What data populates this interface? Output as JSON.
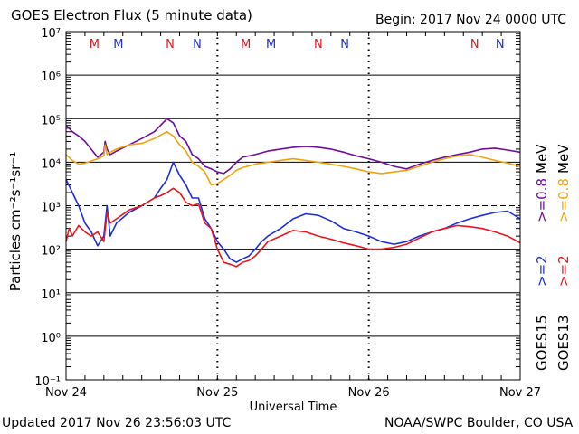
{
  "header": {
    "title": "GOES Electron Flux (5 minute data)",
    "begin": "Begin: 2017 Nov 24 0000 UTC"
  },
  "footer": {
    "updated": "Updated 2017 Nov 26 23:56:03 UTC",
    "source": "NOAA/SWPC Boulder, CO USA"
  },
  "colors": {
    "red": "#e8151b",
    "blue": "#1d2fd8",
    "purple": "#6a0f9e",
    "orange": "#f0a30a"
  },
  "legend": {
    "goes15": "GOES15",
    "goes13": "GOES13",
    "e2_blue": ">=2",
    "e2_red": ">=2",
    "e08_purple": ">=0.8",
    "e08_orange": ">=0.8",
    "mev1": "MeV",
    "mev2": "MeV"
  },
  "chart_data": {
    "type": "line",
    "title": "GOES Electron Flux (5 minute data)",
    "xlabel": "Universal Time",
    "ylabel": "Particles cm⁻²s⁻¹sr⁻¹",
    "x_ticks": [
      "Nov 24",
      "Nov 25",
      "Nov 26",
      "Nov 27"
    ],
    "x_unit": "hours since 2017 Nov 24 0000 UTC",
    "xlim": [
      0,
      72
    ],
    "y_scale": "log",
    "ylim_exponent": [
      -1,
      7
    ],
    "y_ticks": [
      "10⁻¹",
      "10⁰",
      "10¹",
      "10²",
      "10³",
      "10⁴",
      "10⁵",
      "10⁶",
      "10⁷"
    ],
    "threshold_dashed": 1000,
    "markers": [
      {
        "label": "M",
        "color": "red"
      },
      {
        "label": "M",
        "color": "blue"
      },
      {
        "label": "N",
        "color": "red"
      },
      {
        "label": "N",
        "color": "blue"
      },
      {
        "label": "M",
        "color": "red"
      },
      {
        "label": "M",
        "color": "blue"
      },
      {
        "label": "N",
        "color": "red"
      },
      {
        "label": "N",
        "color": "blue"
      },
      {
        "label": "N",
        "color": "red"
      },
      {
        "label": "N",
        "color": "blue"
      }
    ],
    "series": [
      {
        "name": "GOES15 >=0.8 MeV",
        "color": "purple",
        "x": [
          0,
          1,
          2,
          3,
          5,
          6,
          6.2,
          6.5,
          7,
          8,
          10,
          12,
          14,
          16,
          17,
          18,
          19,
          20,
          21,
          22,
          23,
          24,
          25,
          26,
          27,
          28,
          30,
          32,
          34,
          36,
          38,
          40,
          42,
          44,
          46,
          48,
          50,
          52,
          54,
          56,
          58,
          60,
          62,
          64,
          66,
          68,
          70,
          72
        ],
        "y": [
          70000,
          50000,
          40000,
          30000,
          13000,
          17000,
          30000,
          20000,
          15000,
          18000,
          25000,
          35000,
          50000,
          100000,
          80000,
          40000,
          30000,
          15000,
          12000,
          8000,
          7000,
          6000,
          5500,
          7000,
          10000,
          13000,
          15000,
          18000,
          20000,
          22000,
          23000,
          22000,
          20000,
          17000,
          14000,
          12000,
          10000,
          8000,
          7000,
          9000,
          11000,
          13000,
          15000,
          17000,
          20000,
          21000,
          19000,
          17000
        ]
      },
      {
        "name": "GOES13 >=0.8 MeV",
        "color": "orange",
        "x": [
          0,
          1,
          2,
          3,
          5,
          6,
          6.2,
          6.5,
          7,
          8,
          10,
          12,
          14,
          16,
          17,
          18,
          19,
          20,
          21,
          22,
          23,
          24,
          25,
          26,
          27,
          28,
          30,
          32,
          34,
          36,
          38,
          40,
          42,
          44,
          46,
          48,
          50,
          52,
          54,
          56,
          58,
          60,
          62,
          64,
          66,
          68,
          70,
          72
        ],
        "y": [
          15000,
          11000,
          9000,
          9500,
          12000,
          14000,
          25000,
          15000,
          17000,
          20000,
          25000,
          27000,
          35000,
          50000,
          40000,
          25000,
          18000,
          10000,
          8000,
          6000,
          3000,
          3200,
          4000,
          5000,
          6500,
          7500,
          9000,
          10000,
          11000,
          12000,
          11000,
          10000,
          9000,
          8000,
          7000,
          6000,
          5500,
          6000,
          6500,
          8000,
          10000,
          12000,
          14000,
          15000,
          13000,
          11000,
          9500,
          8000
        ]
      },
      {
        "name": "GOES15 >=2 MeV",
        "color": "blue",
        "x": [
          0,
          1,
          2,
          3,
          4,
          5,
          6,
          6.5,
          7,
          8,
          10,
          12,
          14,
          15,
          16,
          17,
          18,
          19,
          20,
          21,
          22,
          23,
          24,
          25,
          26,
          27,
          28,
          29,
          30,
          31,
          32,
          34,
          36,
          38,
          40,
          42,
          44,
          46,
          48,
          50,
          52,
          54,
          56,
          58,
          60,
          62,
          64,
          66,
          68,
          70,
          72
        ],
        "y": [
          4000,
          2000,
          1000,
          400,
          250,
          120,
          200,
          1000,
          200,
          400,
          700,
          1000,
          1500,
          2500,
          4000,
          10000,
          5000,
          3000,
          1500,
          1500,
          500,
          300,
          150,
          100,
          60,
          50,
          60,
          70,
          100,
          150,
          200,
          300,
          500,
          650,
          600,
          450,
          300,
          250,
          200,
          150,
          130,
          150,
          200,
          250,
          300,
          400,
          500,
          600,
          700,
          750,
          500
        ]
      },
      {
        "name": "GOES13 >=2 MeV",
        "color": "red",
        "x": [
          0,
          0.5,
          1,
          2,
          3,
          4,
          5,
          6,
          6.5,
          7,
          8,
          10,
          12,
          14,
          15,
          16,
          17,
          18,
          19,
          20,
          21,
          22,
          23,
          24,
          25,
          26,
          27,
          28,
          29,
          30,
          31,
          32,
          34,
          36,
          38,
          40,
          42,
          44,
          46,
          48,
          50,
          52,
          54,
          56,
          58,
          60,
          62,
          64,
          66,
          68,
          70,
          72
        ],
        "y": [
          150,
          300,
          200,
          350,
          250,
          200,
          250,
          150,
          700,
          400,
          500,
          800,
          1000,
          1500,
          1700,
          2000,
          2500,
          2000,
          1200,
          1000,
          1100,
          400,
          300,
          100,
          50,
          45,
          40,
          50,
          55,
          70,
          100,
          150,
          200,
          270,
          250,
          200,
          170,
          140,
          120,
          100,
          100,
          110,
          130,
          180,
          250,
          300,
          350,
          330,
          300,
          250,
          200,
          140
        ]
      }
    ]
  }
}
